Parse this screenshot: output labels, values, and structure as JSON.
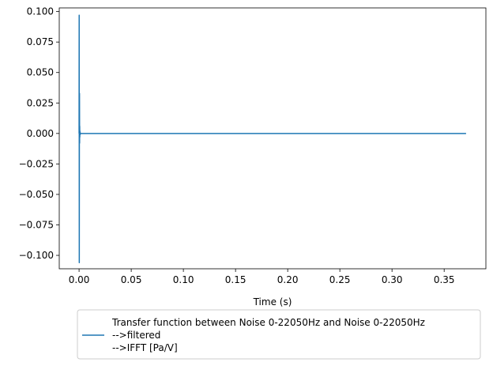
{
  "chart_data": {
    "type": "line",
    "xlabel": "Time (s)",
    "ylabel": "",
    "xlim": [
      -0.019,
      0.39
    ],
    "ylim": [
      -0.111,
      0.103
    ],
    "x_ticks": [
      0.0,
      0.05,
      0.1,
      0.15,
      0.2,
      0.25,
      0.3,
      0.35
    ],
    "x_tick_labels": [
      "0.00",
      "0.05",
      "0.10",
      "0.15",
      "0.20",
      "0.25",
      "0.30",
      "0.35"
    ],
    "y_ticks": [
      0.1,
      0.075,
      0.05,
      0.025,
      0.0,
      -0.025,
      -0.05,
      -0.075,
      -0.1
    ],
    "y_tick_labels": [
      "0.100",
      "0.075",
      "0.050",
      "0.025",
      "0.000",
      "−0.025",
      "−0.050",
      "−0.075",
      "−0.100"
    ],
    "grid": false,
    "legend_placement": "below-center",
    "series": [
      {
        "name_lines": [
          "Transfer function between Noise 0-22050Hz and Noise 0-22050Hz",
          "-->filtered",
          "-->IFFT [Pa/V]"
        ],
        "color": "#1f77b4",
        "x": [
          0.0,
          0.0001,
          0.0002,
          0.0003,
          0.0004,
          0.0005,
          0.0006,
          0.0007,
          0.0008,
          0.001,
          0.0012,
          0.0015,
          0.002,
          0.005,
          0.05,
          0.1,
          0.2,
          0.3,
          0.371
        ],
        "y": [
          0.0,
          0.097,
          -0.106,
          0.016,
          0.033,
          -0.008,
          0.006,
          -0.003,
          0.002,
          -0.001,
          0.0005,
          0.0,
          0.0,
          0.0,
          0.0,
          0.0,
          0.0,
          0.0,
          0.0
        ]
      }
    ]
  }
}
